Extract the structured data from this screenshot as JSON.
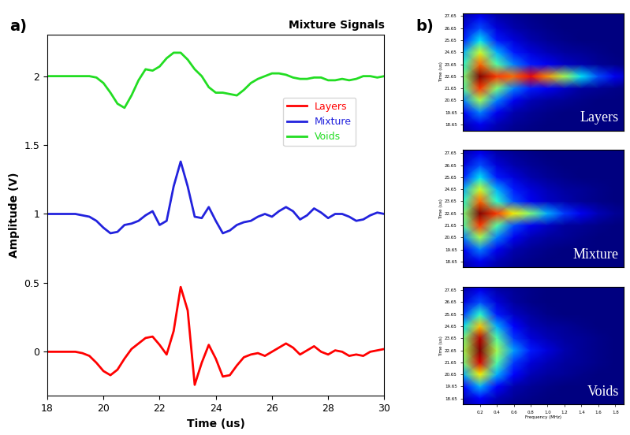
{
  "chart_data": [
    {
      "type": "line",
      "panel_label": "a)",
      "title": "Mixture Signals",
      "xlabel": "Time (us)",
      "ylabel": "Amplitude (V)",
      "xlim": [
        18,
        30
      ],
      "ylim": [
        -0.32,
        2.3
      ],
      "xticks": [
        18,
        20,
        22,
        24,
        26,
        28,
        30
      ],
      "yticks": [
        0,
        0.5,
        1,
        1.5,
        2
      ],
      "grid": false,
      "legend": "upper right",
      "x": [
        18,
        18.25,
        18.5,
        18.75,
        19,
        19.25,
        19.5,
        19.75,
        20,
        20.25,
        20.5,
        20.75,
        21,
        21.25,
        21.5,
        21.75,
        22,
        22.25,
        22.5,
        22.75,
        23,
        23.25,
        23.5,
        23.75,
        24,
        24.25,
        24.5,
        24.75,
        25,
        25.25,
        25.5,
        25.75,
        26,
        26.25,
        26.5,
        26.75,
        27,
        27.25,
        27.5,
        27.75,
        28,
        28.25,
        28.5,
        28.75,
        29,
        29.25,
        29.5,
        29.75,
        30
      ],
      "series": [
        {
          "name": "Layers",
          "color": "#ff0000",
          "line_style": "solid",
          "values": [
            0,
            0,
            0,
            0,
            0,
            -0.01,
            -0.03,
            -0.08,
            -0.14,
            -0.17,
            -0.13,
            -0.05,
            0.02,
            0.06,
            0.1,
            0.11,
            0.05,
            -0.02,
            0.15,
            0.47,
            0.3,
            -0.24,
            -0.08,
            0.05,
            -0.05,
            -0.18,
            -0.17,
            -0.1,
            -0.04,
            -0.02,
            -0.01,
            -0.03,
            0.0,
            0.03,
            0.06,
            0.03,
            -0.02,
            0.01,
            0.04,
            0.0,
            -0.02,
            0.01,
            0.0,
            -0.03,
            -0.02,
            -0.03,
            0.0,
            0.01,
            0.02
          ]
        },
        {
          "name": "Mixture",
          "color": "#2222dd",
          "line_style": "solid",
          "values": [
            1,
            1,
            1,
            1,
            1,
            0.99,
            0.98,
            0.95,
            0.9,
            0.86,
            0.87,
            0.92,
            0.93,
            0.95,
            0.99,
            1.02,
            0.92,
            0.95,
            1.2,
            1.38,
            1.2,
            0.98,
            0.97,
            1.05,
            0.95,
            0.86,
            0.88,
            0.92,
            0.94,
            0.95,
            0.98,
            1.0,
            0.98,
            1.02,
            1.05,
            1.02,
            0.96,
            0.99,
            1.04,
            1.01,
            0.97,
            1.0,
            1.0,
            0.98,
            0.95,
            0.96,
            0.99,
            1.01,
            1.0
          ]
        },
        {
          "name": "Voids",
          "color": "#22dd22",
          "line_style": "solid",
          "values": [
            2,
            2,
            2,
            2,
            2,
            2,
            2,
            1.99,
            1.95,
            1.88,
            1.8,
            1.77,
            1.86,
            1.97,
            2.05,
            2.04,
            2.07,
            2.13,
            2.17,
            2.17,
            2.12,
            2.05,
            2.0,
            1.92,
            1.88,
            1.88,
            1.87,
            1.86,
            1.9,
            1.95,
            1.98,
            2.0,
            2.02,
            2.02,
            2.01,
            1.99,
            1.98,
            1.98,
            1.99,
            1.99,
            1.97,
            1.97,
            1.98,
            1.97,
            1.98,
            2.0,
            2.0,
            1.99,
            2.0
          ]
        }
      ]
    },
    {
      "type": "heatmap",
      "panel_label": "b)",
      "annotation": "Layers",
      "ylabel": "Time (us)",
      "tick_labels": "y",
      "xlim": [
        0,
        1.9
      ],
      "ylim": [
        18.15,
        27.9
      ],
      "yticks": [
        18.65,
        19.65,
        20.65,
        21.65,
        22.65,
        23.65,
        24.65,
        25.65,
        26.65,
        27.65
      ],
      "x": [
        0,
        0.2,
        0.4,
        0.6,
        0.8,
        1.0,
        1.2,
        1.4,
        1.6,
        1.8,
        2.0
      ],
      "y": [
        17.65,
        18.65,
        19.65,
        20.65,
        21.65,
        22.65,
        23.65,
        24.65,
        25.65,
        26.65,
        27.65,
        28.65
      ],
      "cells": [
        [
          0.02,
          0.05,
          0.03,
          0.01,
          0,
          0,
          0,
          0,
          0,
          0,
          0
        ],
        [
          0.05,
          0.1,
          0.05,
          0.02,
          0.01,
          0,
          0,
          0,
          0,
          0,
          0
        ],
        [
          0.1,
          0.25,
          0.1,
          0.04,
          0.02,
          0.01,
          0,
          0,
          0,
          0,
          0
        ],
        [
          0.25,
          0.55,
          0.25,
          0.1,
          0.05,
          0.03,
          0.02,
          0.01,
          0,
          0,
          0
        ],
        [
          0.45,
          0.85,
          0.5,
          0.25,
          0.15,
          0.1,
          0.06,
          0.03,
          0.02,
          0.01,
          0
        ],
        [
          0.5,
          1.0,
          0.85,
          0.8,
          0.9,
          0.75,
          0.55,
          0.35,
          0.2,
          0.1,
          0.05
        ],
        [
          0.4,
          0.8,
          0.45,
          0.25,
          0.15,
          0.1,
          0.06,
          0.04,
          0.02,
          0.01,
          0
        ],
        [
          0.3,
          0.6,
          0.3,
          0.15,
          0.08,
          0.05,
          0.03,
          0.02,
          0.01,
          0,
          0
        ],
        [
          0.15,
          0.35,
          0.15,
          0.08,
          0.04,
          0.02,
          0.01,
          0,
          0,
          0,
          0
        ],
        [
          0.08,
          0.2,
          0.08,
          0.04,
          0.02,
          0.01,
          0,
          0,
          0,
          0,
          0
        ],
        [
          0.04,
          0.1,
          0.04,
          0.02,
          0.01,
          0,
          0,
          0,
          0,
          0,
          0
        ],
        [
          0.02,
          0.05,
          0.02,
          0.01,
          0,
          0,
          0,
          0,
          0,
          0,
          0
        ]
      ]
    },
    {
      "type": "heatmap",
      "annotation": "Mixture",
      "ylabel": "Time (us)",
      "tick_labels": "y",
      "xlim": [
        0,
        1.9
      ],
      "ylim": [
        18.15,
        27.9
      ],
      "yticks": [
        18.65,
        19.65,
        20.65,
        21.65,
        22.65,
        23.65,
        24.65,
        25.65,
        26.65,
        27.65
      ],
      "x": [
        0,
        0.2,
        0.4,
        0.6,
        0.8,
        1.0,
        1.2,
        1.4,
        1.6,
        1.8,
        2.0
      ],
      "y": [
        17.65,
        18.65,
        19.65,
        20.65,
        21.65,
        22.65,
        23.65,
        24.65,
        25.65,
        26.65,
        27.65,
        28.65
      ],
      "cells": [
        [
          0.02,
          0.05,
          0.03,
          0.01,
          0,
          0,
          0,
          0,
          0,
          0,
          0
        ],
        [
          0.05,
          0.1,
          0.05,
          0.02,
          0.01,
          0,
          0,
          0,
          0,
          0,
          0
        ],
        [
          0.1,
          0.25,
          0.1,
          0.04,
          0.02,
          0.01,
          0,
          0,
          0,
          0,
          0
        ],
        [
          0.25,
          0.55,
          0.25,
          0.1,
          0.05,
          0.03,
          0.02,
          0.01,
          0,
          0,
          0
        ],
        [
          0.45,
          0.85,
          0.45,
          0.2,
          0.1,
          0.06,
          0.03,
          0.02,
          0.01,
          0,
          0
        ],
        [
          0.5,
          1.0,
          0.85,
          0.65,
          0.5,
          0.3,
          0.18,
          0.1,
          0.05,
          0.02,
          0.01
        ],
        [
          0.4,
          0.8,
          0.4,
          0.2,
          0.1,
          0.06,
          0.04,
          0.02,
          0.01,
          0,
          0
        ],
        [
          0.3,
          0.6,
          0.3,
          0.15,
          0.08,
          0.05,
          0.03,
          0.02,
          0.01,
          0,
          0
        ],
        [
          0.15,
          0.35,
          0.15,
          0.08,
          0.04,
          0.02,
          0.01,
          0,
          0,
          0,
          0
        ],
        [
          0.08,
          0.2,
          0.08,
          0.04,
          0.02,
          0.01,
          0,
          0,
          0,
          0,
          0
        ],
        [
          0.04,
          0.1,
          0.04,
          0.02,
          0.01,
          0,
          0,
          0,
          0,
          0,
          0
        ],
        [
          0.02,
          0.05,
          0.02,
          0.01,
          0,
          0,
          0,
          0,
          0,
          0,
          0
        ]
      ]
    },
    {
      "type": "heatmap",
      "annotation": "Voids",
      "xlabel": "Frequency (MHz)",
      "ylabel": "Time (us)",
      "xlim": [
        0,
        1.9
      ],
      "ylim": [
        18.15,
        27.9
      ],
      "xticks": [
        0.2,
        0.4,
        0.6,
        0.8,
        1.0,
        1.2,
        1.4,
        1.6,
        1.8
      ],
      "yticks": [
        18.65,
        19.65,
        20.65,
        21.65,
        22.65,
        23.65,
        24.65,
        25.65,
        26.65,
        27.65
      ],
      "x": [
        0,
        0.2,
        0.4,
        0.6,
        0.8,
        1.0,
        1.2,
        1.4,
        1.6,
        1.8,
        2.0
      ],
      "y": [
        17.65,
        18.65,
        19.65,
        20.65,
        21.65,
        22.65,
        23.65,
        24.65,
        25.65,
        26.65,
        27.65,
        28.65
      ],
      "cells": [
        [
          0.02,
          0.06,
          0.03,
          0.01,
          0,
          0,
          0,
          0,
          0,
          0,
          0
        ],
        [
          0.05,
          0.12,
          0.05,
          0.02,
          0.01,
          0,
          0,
          0,
          0,
          0,
          0
        ],
        [
          0.12,
          0.3,
          0.12,
          0.04,
          0.02,
          0.01,
          0,
          0,
          0,
          0,
          0
        ],
        [
          0.3,
          0.65,
          0.3,
          0.12,
          0.05,
          0.03,
          0.02,
          0.01,
          0,
          0,
          0
        ],
        [
          0.5,
          0.92,
          0.45,
          0.18,
          0.08,
          0.05,
          0.03,
          0.02,
          0.01,
          0,
          0
        ],
        [
          0.55,
          1.0,
          0.55,
          0.28,
          0.15,
          0.08,
          0.04,
          0.02,
          0.01,
          0,
          0
        ],
        [
          0.5,
          0.95,
          0.45,
          0.18,
          0.08,
          0.05,
          0.03,
          0.02,
          0.01,
          0,
          0
        ],
        [
          0.35,
          0.7,
          0.3,
          0.12,
          0.05,
          0.03,
          0.02,
          0.01,
          0,
          0,
          0
        ],
        [
          0.18,
          0.4,
          0.15,
          0.06,
          0.03,
          0.01,
          0,
          0,
          0,
          0,
          0
        ],
        [
          0.08,
          0.2,
          0.08,
          0.03,
          0.01,
          0,
          0,
          0,
          0,
          0,
          0
        ],
        [
          0.04,
          0.1,
          0.04,
          0.02,
          0.01,
          0,
          0,
          0,
          0,
          0,
          0
        ],
        [
          0.02,
          0.05,
          0.02,
          0.01,
          0,
          0,
          0,
          0,
          0,
          0,
          0
        ]
      ]
    }
  ]
}
